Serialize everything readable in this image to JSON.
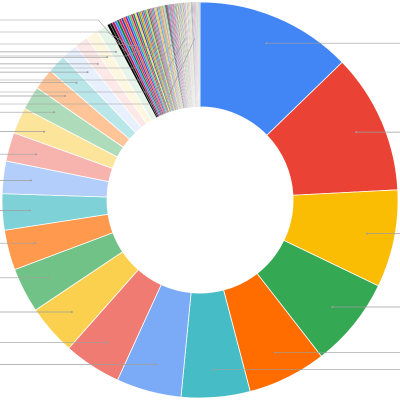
{
  "chart_data": {
    "type": "pie",
    "donut": true,
    "hole_ratio": 0.47,
    "start_angle_deg": 0,
    "direction": "clockwise",
    "legend": "none",
    "labels_visible": false,
    "leader_lines": true,
    "main_slices": [
      {
        "value": 12.5,
        "color": "#4285F4"
      },
      {
        "value": 11.2,
        "color": "#EA4335"
      },
      {
        "value": 7.8,
        "color": "#FBBC04"
      },
      {
        "value": 7.2,
        "color": "#34A853"
      },
      {
        "value": 6.3,
        "color": "#FF6D01"
      },
      {
        "value": 5.5,
        "color": "#46BDC6"
      },
      {
        "value": 5.2,
        "color": "#7BAAF7"
      },
      {
        "value": 4.6,
        "color": "#F07B72"
      },
      {
        "value": 4.0,
        "color": "#FCD04F"
      },
      {
        "value": 3.6,
        "color": "#71C287"
      },
      {
        "value": 3.2,
        "color": "#FF994D"
      },
      {
        "value": 2.9,
        "color": "#7ED1D7"
      },
      {
        "value": 2.6,
        "color": "#B3CEFB"
      },
      {
        "value": 2.3,
        "color": "#F7B4AE"
      },
      {
        "value": 2.1,
        "color": "#FDE49B"
      },
      {
        "value": 1.9,
        "color": "#AEDCBA"
      },
      {
        "value": 1.7,
        "color": "#FFC599"
      },
      {
        "value": 1.5,
        "color": "#B9E6E9"
      },
      {
        "value": 1.3,
        "color": "#E8F0FE"
      },
      {
        "value": 1.1,
        "color": "#FCE8E6"
      },
      {
        "value": 1.0,
        "color": "#FEF7E0"
      },
      {
        "value": 0.9,
        "color": "#E6F4EA"
      }
    ],
    "tail_slice_count": 90,
    "tail_total": 7.6,
    "tail_palette": [
      "#000000",
      "#1A1A1A",
      "#C2185B",
      "#4285F4",
      "#0B8043",
      "#E91E63",
      "#3949AB",
      "#F4511E",
      "#8E24AA",
      "#039BE5",
      "#7CB342",
      "#D81B60",
      "#00897B",
      "#FDD835",
      "#5E35B1",
      "#43A047",
      "#FB8C00",
      "#1E88E5",
      "#E53935",
      "#00ACC1",
      "#C0CA33",
      "#6D4C41",
      "#546E7A",
      "#EC407A",
      "#26A69A",
      "#AB47BC",
      "#9CCC65",
      "#FFB300",
      "#5C6BC0",
      "#29B6F6",
      "#EF5350",
      "#66BB6A",
      "#FFA726",
      "#8D6E63",
      "#BDBDBD",
      "#4DB6AC"
    ]
  }
}
